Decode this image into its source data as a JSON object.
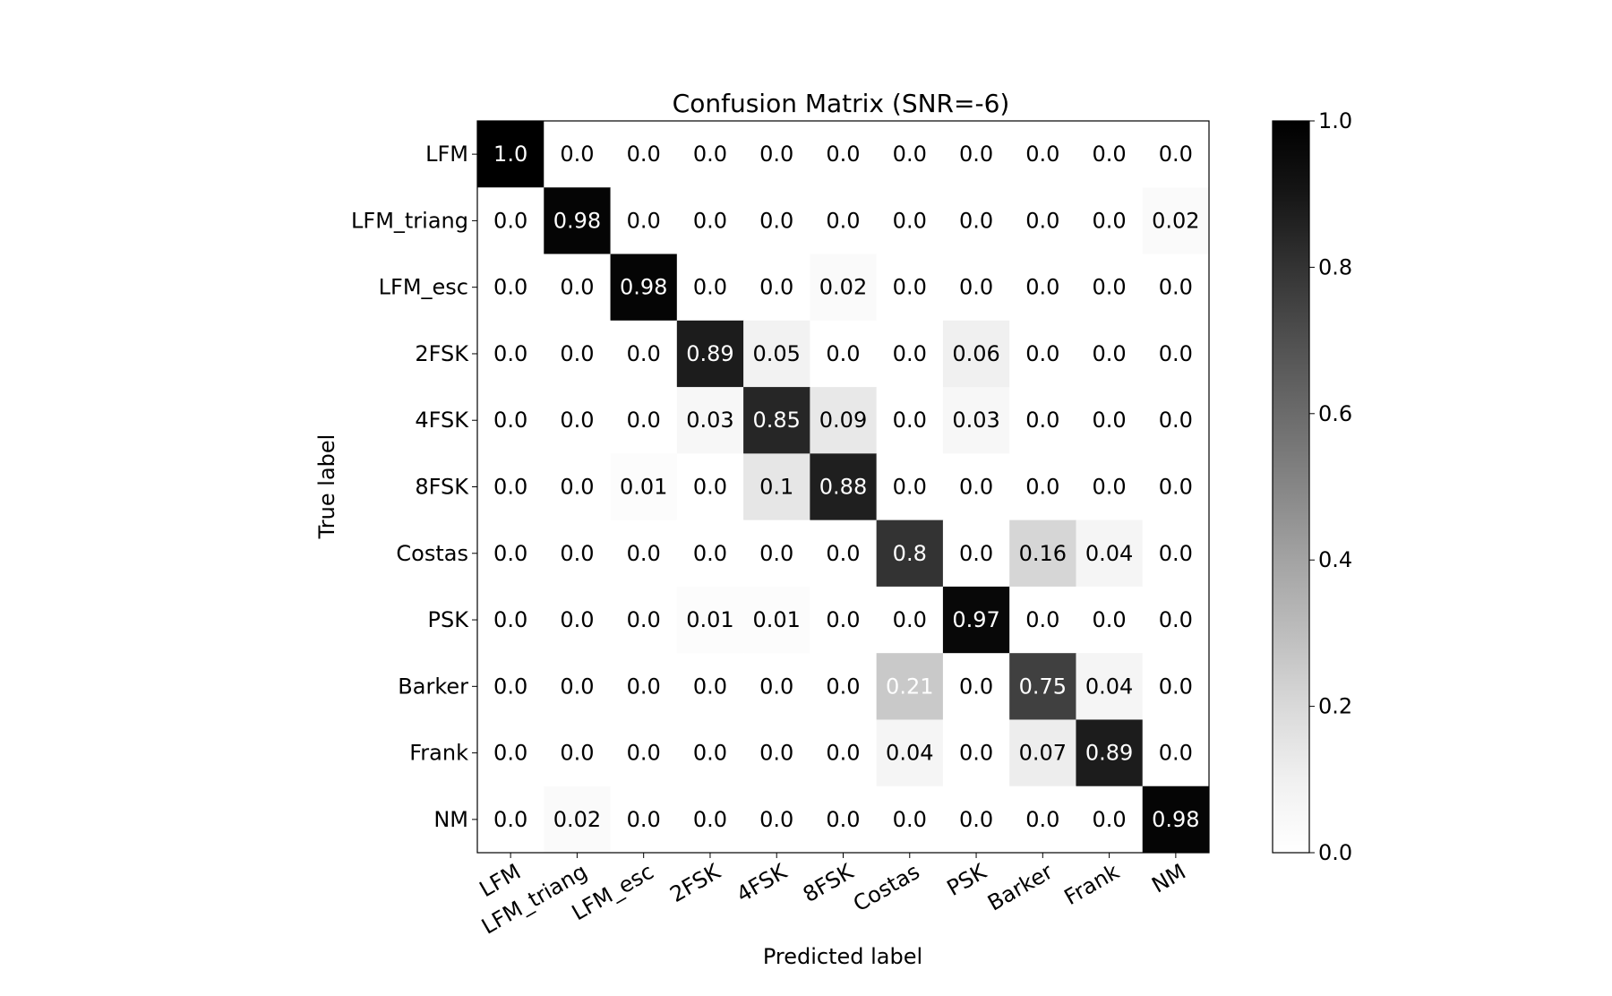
{
  "chart_data": {
    "type": "heatmap",
    "title": "Confusion Matrix (SNR=-6)",
    "xlabel": "Predicted label",
    "ylabel": "True label",
    "x_categories": [
      "LFM",
      "LFM_triang",
      "LFM_esc",
      "2FSK",
      "4FSK",
      "8FSK",
      "Costas",
      "PSK",
      "Barker",
      "Frank",
      "NM"
    ],
    "y_categories": [
      "LFM",
      "LFM_triang",
      "LFM_esc",
      "2FSK",
      "4FSK",
      "8FSK",
      "Costas",
      "PSK",
      "Barker",
      "Frank",
      "NM"
    ],
    "values": [
      [
        "1.0",
        "0.0",
        "0.0",
        "0.0",
        "0.0",
        "0.0",
        "0.0",
        "0.0",
        "0.0",
        "0.0",
        "0.0"
      ],
      [
        "0.0",
        "0.98",
        "0.0",
        "0.0",
        "0.0",
        "0.0",
        "0.0",
        "0.0",
        "0.0",
        "0.0",
        "0.02"
      ],
      [
        "0.0",
        "0.0",
        "0.98",
        "0.0",
        "0.0",
        "0.02",
        "0.0",
        "0.0",
        "0.0",
        "0.0",
        "0.0"
      ],
      [
        "0.0",
        "0.0",
        "0.0",
        "0.89",
        "0.05",
        "0.0",
        "0.0",
        "0.06",
        "0.0",
        "0.0",
        "0.0"
      ],
      [
        "0.0",
        "0.0",
        "0.0",
        "0.03",
        "0.85",
        "0.09",
        "0.0",
        "0.03",
        "0.0",
        "0.0",
        "0.0"
      ],
      [
        "0.0",
        "0.0",
        "0.01",
        "0.0",
        "0.1",
        "0.88",
        "0.0",
        "0.0",
        "0.0",
        "0.0",
        "0.0"
      ],
      [
        "0.0",
        "0.0",
        "0.0",
        "0.0",
        "0.0",
        "0.0",
        "0.8",
        "0.0",
        "0.16",
        "0.04",
        "0.0"
      ],
      [
        "0.0",
        "0.0",
        "0.0",
        "0.01",
        "0.01",
        "0.0",
        "0.0",
        "0.97",
        "0.0",
        "0.0",
        "0.0"
      ],
      [
        "0.0",
        "0.0",
        "0.0",
        "0.0",
        "0.0",
        "0.0",
        "0.21",
        "0.0",
        "0.75",
        "0.04",
        "0.0"
      ],
      [
        "0.0",
        "0.0",
        "0.0",
        "0.0",
        "0.0",
        "0.0",
        "0.04",
        "0.0",
        "0.07",
        "0.89",
        "0.0"
      ],
      [
        "0.0",
        "0.02",
        "0.0",
        "0.0",
        "0.0",
        "0.0",
        "0.0",
        "0.0",
        "0.0",
        "0.0",
        "0.98"
      ]
    ],
    "colorbar": {
      "range": [
        0.0,
        1.0
      ],
      "ticks": [
        "0.0",
        "0.2",
        "0.4",
        "0.6",
        "0.8",
        "1.0"
      ],
      "colormap": "Greys",
      "low_color": "#ffffff",
      "high_color": "#000000"
    },
    "grid": false
  }
}
